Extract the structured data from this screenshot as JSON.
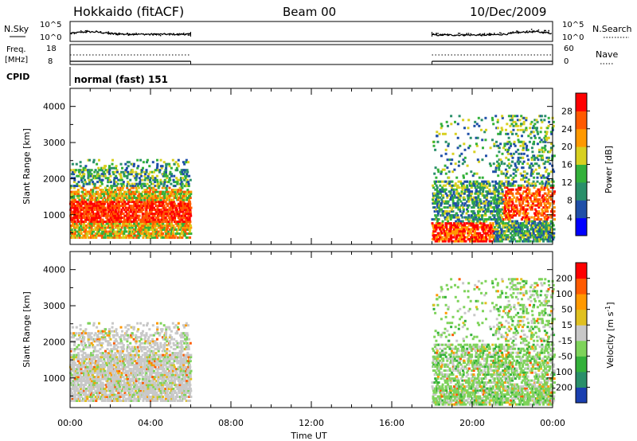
{
  "header": {
    "station": "Hokkaido (fitACF)",
    "beam": "Beam 00",
    "date": "10/Dec/2009"
  },
  "noise_panel": {
    "left_label": "N.Sky",
    "right_label": "N.Search",
    "left_ticks": [
      "10^5",
      "10^0"
    ],
    "right_ticks": [
      "10^5",
      "10^0"
    ]
  },
  "freq_panel": {
    "left_label_top": "Freq.",
    "left_label_bottom": "[MHz]",
    "left_ticks": [
      "18",
      "8"
    ],
    "right_label": "Nave",
    "right_ticks": [
      "60",
      "0"
    ]
  },
  "cpid": {
    "label": "CPID",
    "mode_text": "normal (fast) 151"
  },
  "chart_data": [
    {
      "type": "heatmap",
      "title": "",
      "ylabel": "Slant Range [km]",
      "xlabel": "Time UT",
      "x_ticks": [
        "00:00",
        "04:00",
        "08:00",
        "12:00",
        "16:00",
        "20:00",
        "00:00"
      ],
      "y_ticks": [
        "1000",
        "2000",
        "3000",
        "4000"
      ],
      "ylim": [
        180,
        4500
      ],
      "xlim_hours": [
        0,
        24
      ],
      "data_windows_hours": [
        [
          0,
          6
        ],
        [
          18,
          24
        ]
      ],
      "colorbar": {
        "label": "Power [dB]",
        "ticks": [
          "4",
          "8",
          "12",
          "16",
          "20",
          "24",
          "28"
        ],
        "colors": [
          "#0000ff",
          "#1f4fa8",
          "#2a8f6a",
          "#33b13a",
          "#d8d020",
          "#ff9900",
          "#ff5a00",
          "#ff0000"
        ]
      }
    },
    {
      "type": "heatmap",
      "title": "",
      "ylabel": "Slant Range [km]",
      "xlabel": "Time UT",
      "x_ticks": [
        "00:00",
        "04:00",
        "08:00",
        "12:00",
        "16:00",
        "20:00",
        "00:00"
      ],
      "y_ticks": [
        "1000",
        "2000",
        "3000",
        "4000"
      ],
      "ylim": [
        180,
        4500
      ],
      "xlim_hours": [
        0,
        24
      ],
      "data_windows_hours": [
        [
          0,
          6
        ],
        [
          18,
          24
        ]
      ],
      "colorbar": {
        "label": "Velocity [m s",
        "label_sup": "-1",
        "label_close": "]",
        "ticks": [
          "200",
          "100",
          "50",
          "15",
          "-15",
          "-50",
          "-100",
          "-200"
        ],
        "colors": [
          "#1a3fb0",
          "#2a8f6a",
          "#33b13a",
          "#7ed35a",
          "#c8c8c8",
          "#e0c020",
          "#ff9900",
          "#ff5a00",
          "#ff0000"
        ]
      }
    }
  ],
  "x_axis_title": "Time UT"
}
